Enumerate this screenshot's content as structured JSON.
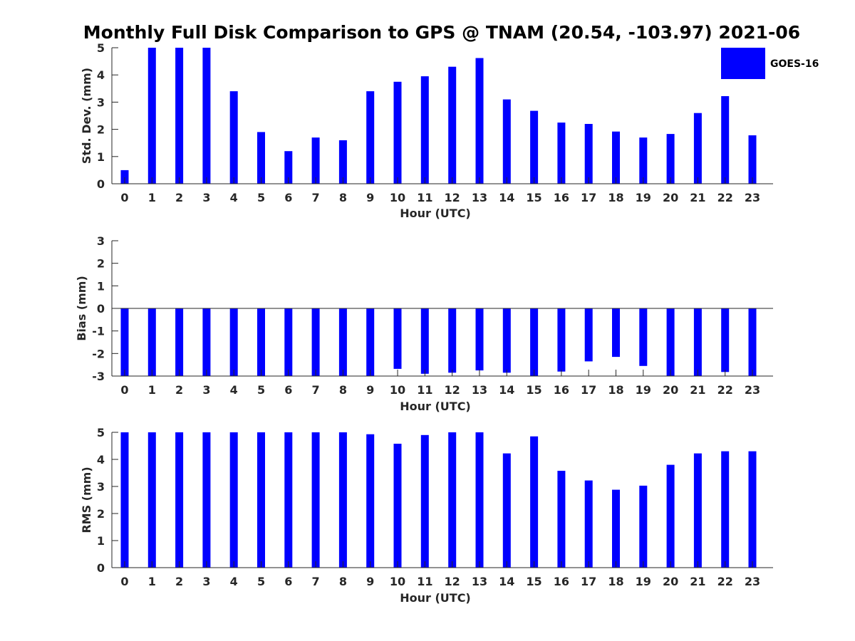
{
  "figure_title": "Monthly Full Disk Comparison to GPS @ TNAM (20.54, -103.97) 2021-06",
  "legend": {
    "label": "GOES-16",
    "color": "#0000ff"
  },
  "chart_data": [
    {
      "type": "bar",
      "title": "Monthly Full Disk Comparison to GPS @ TNAM (20.54, -103.97) 2021-06",
      "xlabel": "Hour (UTC)",
      "ylabel": "Std. Dev. (mm)",
      "ylim": [
        0,
        5
      ],
      "yticks": [
        0,
        1,
        2,
        3,
        4,
        5
      ],
      "categories": [
        "0",
        "1",
        "2",
        "3",
        "4",
        "5",
        "6",
        "7",
        "8",
        "9",
        "10",
        "11",
        "12",
        "13",
        "14",
        "15",
        "16",
        "17",
        "18",
        "19",
        "20",
        "21",
        "22",
        "23"
      ],
      "series": [
        {
          "name": "GOES-16",
          "values": [
            0.5,
            5.0,
            5.0,
            5.0,
            3.4,
            1.9,
            1.2,
            1.7,
            1.6,
            3.4,
            3.75,
            3.95,
            4.3,
            4.62,
            3.1,
            2.68,
            2.25,
            2.2,
            1.92,
            1.7,
            1.83,
            2.6,
            3.22,
            1.78
          ]
        }
      ],
      "grid": false,
      "legend_position": "top-right"
    },
    {
      "type": "bar",
      "title": "",
      "xlabel": "Hour (UTC)",
      "ylabel": "Bias (mm)",
      "ylim": [
        -3,
        3
      ],
      "yticks": [
        -3,
        -2,
        -1,
        0,
        1,
        2,
        3
      ],
      "categories": [
        "0",
        "1",
        "2",
        "3",
        "4",
        "5",
        "6",
        "7",
        "8",
        "9",
        "10",
        "11",
        "12",
        "13",
        "14",
        "15",
        "16",
        "17",
        "18",
        "19",
        "20",
        "21",
        "22",
        "23"
      ],
      "series": [
        {
          "name": "GOES-16",
          "values": [
            -3.0,
            -3.0,
            -3.0,
            -3.0,
            -3.0,
            -3.0,
            -3.0,
            -3.0,
            -3.0,
            -3.0,
            -2.68,
            -2.9,
            -2.85,
            -2.75,
            -2.85,
            -3.0,
            -2.8,
            -2.35,
            -2.15,
            -2.55,
            -3.0,
            -3.0,
            -2.82,
            -3.0
          ]
        }
      ],
      "grid": false
    },
    {
      "type": "bar",
      "title": "",
      "xlabel": "Hour (UTC)",
      "ylabel": "RMS (mm)",
      "ylim": [
        0,
        5
      ],
      "yticks": [
        0,
        1,
        2,
        3,
        4,
        5
      ],
      "categories": [
        "0",
        "1",
        "2",
        "3",
        "4",
        "5",
        "6",
        "7",
        "8",
        "9",
        "10",
        "11",
        "12",
        "13",
        "14",
        "15",
        "16",
        "17",
        "18",
        "19",
        "20",
        "21",
        "22",
        "23"
      ],
      "series": [
        {
          "name": "GOES-16",
          "values": [
            5.0,
            5.0,
            5.0,
            5.0,
            5.0,
            5.0,
            5.0,
            5.0,
            5.0,
            4.93,
            4.58,
            4.9,
            5.0,
            5.0,
            4.22,
            4.85,
            3.58,
            3.22,
            2.88,
            3.03,
            3.8,
            4.22,
            4.3,
            4.3
          ]
        }
      ],
      "grid": false
    }
  ]
}
